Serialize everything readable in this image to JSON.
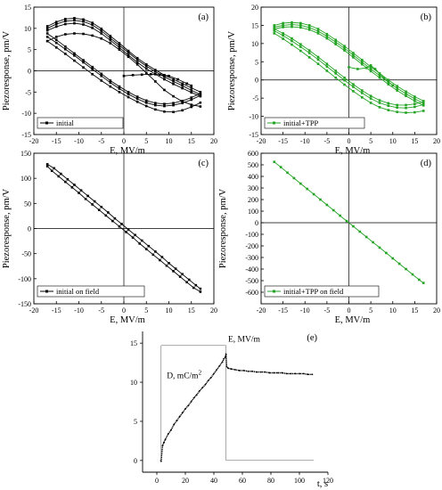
{
  "chart_data": [
    {
      "id": "a",
      "type": "line",
      "panel_label": "(a)",
      "xlabel": "E, MV/m",
      "ylabel": "Piezoresponse, pm/V",
      "xlim": [
        -20,
        20
      ],
      "ylim": [
        -15,
        15
      ],
      "xticks": [
        -20,
        -15,
        -10,
        -5,
        0,
        5,
        10,
        15,
        20
      ],
      "yticks": [
        -15,
        -10,
        -5,
        0,
        5,
        10,
        15
      ],
      "legend": {
        "entries": [
          "initial"
        ],
        "placement": "bottom-left"
      },
      "color": "#000000",
      "series": [
        {
          "x": [
            -17,
            -15,
            -13,
            -11,
            -9,
            -7,
            -5,
            -3,
            -1,
            1,
            3,
            5,
            7,
            9,
            11,
            13,
            15,
            17
          ],
          "y": [
            10.5,
            11.5,
            12.2,
            12.4,
            12.1,
            11.3,
            9.9,
            8.2,
            6.5,
            4.7,
            3.0,
            1.5,
            0.2,
            -1.0,
            -2.0,
            -3.0,
            -4.0,
            -5.0
          ]
        },
        {
          "x": [
            -17,
            -15,
            -13,
            -11,
            -9,
            -7,
            -5,
            -3,
            -1,
            1,
            3,
            5,
            7,
            9,
            11,
            13,
            15,
            17
          ],
          "y": [
            10.0,
            11.0,
            11.7,
            11.9,
            11.6,
            10.8,
            9.4,
            7.7,
            6.0,
            4.3,
            2.6,
            1.1,
            -0.2,
            -1.4,
            -2.5,
            -3.5,
            -4.6,
            -5.6
          ]
        },
        {
          "x": [
            -17,
            -15,
            -13,
            -11,
            -9,
            -7,
            -5,
            -3,
            -1,
            1,
            3,
            5,
            7,
            9,
            11,
            13,
            15,
            17
          ],
          "y": [
            9.5,
            10.4,
            11.0,
            11.2,
            10.9,
            10.1,
            8.8,
            7.2,
            5.5,
            3.7,
            2.0,
            0.5,
            -0.8,
            -2.0,
            -3.1,
            -4.1,
            -5.1,
            -6.0
          ]
        },
        {
          "x": [
            17,
            15,
            13,
            11,
            9,
            7,
            5,
            3,
            1,
            -1,
            -3,
            -5,
            -7,
            -9,
            -11,
            -13,
            -15,
            -17
          ],
          "y": [
            -5.3,
            -6.3,
            -7.1,
            -7.6,
            -7.8,
            -7.6,
            -7.0,
            -6.1,
            -5.0,
            -3.7,
            -2.3,
            -0.7,
            0.9,
            2.5,
            4.1,
            5.7,
            7.3,
            8.8
          ]
        },
        {
          "x": [
            17,
            15,
            13,
            11,
            9,
            7,
            5,
            3,
            1,
            -1,
            -3,
            -5,
            -7,
            -9,
            -11,
            -13,
            -15,
            -17
          ],
          "y": [
            -5.8,
            -6.8,
            -7.6,
            -8.1,
            -8.3,
            -8.1,
            -7.5,
            -6.6,
            -5.5,
            -4.2,
            -2.8,
            -1.2,
            0.4,
            2.0,
            3.6,
            5.1,
            6.6,
            8.0
          ]
        },
        {
          "x": [
            17,
            15,
            13,
            11,
            9,
            7,
            5,
            3,
            1,
            -1,
            -3,
            -5,
            -7,
            -9,
            -11,
            -13,
            -15,
            -17
          ],
          "y": [
            -7.5,
            -8.5,
            -9.3,
            -9.7,
            -9.6,
            -9.1,
            -8.3,
            -7.3,
            -6.2,
            -5.0,
            -3.7,
            -2.3,
            -0.8,
            0.8,
            2.4,
            4.0,
            5.5,
            7.0
          ]
        },
        {
          "x": [
            -17,
            -15,
            -13,
            -11,
            -9,
            -7,
            -5,
            -3,
            -1,
            1,
            3,
            5,
            7,
            9,
            11,
            13,
            15,
            17
          ],
          "y": [
            7.0,
            8.0,
            8.6,
            8.8,
            8.7,
            8.3,
            7.6,
            6.5,
            5.0,
            3.3,
            1.5,
            -0.5,
            -2.5,
            -4.5,
            -6.0,
            -7.2,
            -8.0,
            -8.4
          ]
        },
        {
          "x": [
            0,
            2,
            4,
            6,
            8,
            10,
            12,
            14,
            15
          ],
          "y": [
            -1.2,
            -1.0,
            -0.9,
            -0.8,
            -0.9,
            -1.2,
            -2.0,
            -3.0,
            -3.5
          ]
        }
      ]
    },
    {
      "id": "b",
      "type": "line",
      "panel_label": "(b)",
      "xlabel": "E, MV/m",
      "ylabel": "Piezoresponse, pm/V",
      "xlim": [
        -20,
        20
      ],
      "ylim": [
        -15,
        20
      ],
      "xticks": [
        -20,
        -15,
        -10,
        -5,
        0,
        5,
        10,
        15,
        20
      ],
      "yticks": [
        -15,
        -10,
        -5,
        0,
        5,
        10,
        15,
        20
      ],
      "legend": {
        "entries": [
          "initial+TPP"
        ],
        "placement": "bottom-left"
      },
      "color": "#23a323",
      "series": [
        {
          "x": [
            -17,
            -15,
            -13,
            -11,
            -9,
            -7,
            -5,
            -3,
            -1,
            1,
            3,
            5,
            7,
            9,
            11,
            13,
            15,
            17
          ],
          "y": [
            15.0,
            15.6,
            15.8,
            15.6,
            15.0,
            14.0,
            12.6,
            11.0,
            9.3,
            7.4,
            5.5,
            3.6,
            1.8,
            0.0,
            -1.7,
            -3.2,
            -4.6,
            -5.8
          ]
        },
        {
          "x": [
            -17,
            -15,
            -13,
            -11,
            -9,
            -7,
            -5,
            -3,
            -1,
            1,
            3,
            5,
            7,
            9,
            11,
            13,
            15,
            17
          ],
          "y": [
            14.5,
            15.0,
            15.2,
            15.0,
            14.4,
            13.4,
            12.0,
            10.4,
            8.7,
            6.8,
            4.9,
            3.0,
            1.2,
            -0.6,
            -2.3,
            -3.8,
            -5.2,
            -6.4
          ]
        },
        {
          "x": [
            -17,
            -15,
            -13,
            -11,
            -9,
            -7,
            -5,
            -3,
            -1,
            1,
            3,
            5,
            7,
            9,
            11,
            13,
            15,
            17
          ],
          "y": [
            14.0,
            14.5,
            14.6,
            14.4,
            13.8,
            12.8,
            11.4,
            9.8,
            8.1,
            6.2,
            4.3,
            2.4,
            0.6,
            -1.2,
            -2.9,
            -4.4,
            -5.8,
            -7.0
          ]
        },
        {
          "x": [
            17,
            15,
            13,
            11,
            9,
            7,
            5,
            3,
            1,
            -1,
            -3,
            -5,
            -7,
            -9,
            -11,
            -13,
            -15,
            -17
          ],
          "y": [
            -6.0,
            -6.6,
            -6.9,
            -6.9,
            -6.4,
            -5.6,
            -4.4,
            -2.9,
            -1.2,
            0.6,
            2.5,
            4.4,
            6.3,
            8.1,
            9.8,
            11.4,
            12.8,
            14.0
          ]
        },
        {
          "x": [
            17,
            15,
            13,
            11,
            9,
            7,
            5,
            3,
            1,
            -1,
            -3,
            -5,
            -7,
            -9,
            -11,
            -13,
            -15,
            -17
          ],
          "y": [
            -6.8,
            -7.4,
            -7.7,
            -7.6,
            -7.1,
            -6.3,
            -5.1,
            -3.6,
            -1.9,
            -0.1,
            1.8,
            3.7,
            5.6,
            7.4,
            9.1,
            10.7,
            12.2,
            13.5
          ]
        },
        {
          "x": [
            17,
            15,
            13,
            11,
            9,
            7,
            5,
            3,
            1,
            -1,
            -3,
            -5,
            -7,
            -9,
            -11,
            -13,
            -15,
            -17
          ],
          "y": [
            -8.5,
            -8.9,
            -9.0,
            -8.8,
            -8.3,
            -7.5,
            -6.3,
            -4.8,
            -3.1,
            -1.3,
            0.6,
            2.5,
            4.4,
            6.2,
            8.0,
            9.7,
            11.3,
            12.8
          ]
        },
        {
          "x": [
            0,
            2,
            4,
            5,
            6,
            8,
            10
          ],
          "y": [
            3.5,
            3.0,
            3.3,
            4.0,
            3.0,
            0.5,
            -1.5
          ]
        }
      ]
    },
    {
      "id": "c",
      "type": "line",
      "panel_label": "(c)",
      "xlabel": "E, MV/m",
      "ylabel": "Piezoresponse, pm/V",
      "xlim": [
        -20,
        20
      ],
      "ylim": [
        -150,
        150
      ],
      "xticks": [
        -20,
        -15,
        -10,
        -5,
        0,
        5,
        10,
        15,
        20
      ],
      "yticks": [
        -150,
        -100,
        -50,
        0,
        50,
        100,
        150
      ],
      "legend": {
        "entries": [
          "initial on field"
        ],
        "placement": "bottom-left"
      },
      "color": "#000000",
      "series": [
        {
          "x": [
            -17,
            -15.5,
            -14,
            -12.5,
            -11,
            -9.5,
            -8,
            -6.5,
            -5,
            -3.5,
            -2,
            -0.5,
            1,
            2.5,
            4,
            5.5,
            7,
            8.5,
            10,
            11.5,
            13,
            14.5,
            16,
            17
          ],
          "y": [
            128,
            120,
            109,
            98,
            87,
            76,
            65,
            54,
            43,
            32,
            20,
            9,
            -2,
            -13,
            -24,
            -35,
            -46,
            -57,
            -69,
            -80,
            -91,
            -102,
            -113,
            -120
          ]
        },
        {
          "x": [
            17,
            15.5,
            14,
            12.5,
            11,
            9.5,
            8,
            6.5,
            5,
            3.5,
            2,
            0.5,
            -1,
            -2.5,
            -4,
            -5.5,
            -7,
            -8.5,
            -10,
            -11.5,
            -13,
            -14.5,
            -16,
            -17
          ],
          "y": [
            -126,
            -118,
            -107,
            -96,
            -85,
            -74,
            -63,
            -52,
            -41,
            -30,
            -18,
            -7,
            4,
            15,
            26,
            37,
            48,
            59,
            71,
            82,
            93,
            104,
            115,
            124
          ]
        }
      ]
    },
    {
      "id": "d",
      "type": "line",
      "panel_label": "(d)",
      "xlabel": "E, MV/m",
      "ylabel": "Piezoresponse, pm/V",
      "xlim": [
        -20,
        20
      ],
      "ylim": [
        -700,
        600
      ],
      "xticks": [
        -20,
        -15,
        -10,
        -5,
        0,
        5,
        10,
        15,
        20
      ],
      "yticks": [
        -600,
        -500,
        -400,
        -300,
        -200,
        -100,
        0,
        100,
        200,
        300,
        400,
        500,
        600
      ],
      "legend": {
        "entries": [
          "initial+TPP on field"
        ],
        "placement": "bottom-left"
      },
      "color": "#23a323",
      "series": [
        {
          "x": [
            -17,
            -15.5,
            -14,
            -12.5,
            -11,
            -9.5,
            -8,
            -6.5,
            -5,
            -3.5,
            -2,
            -0.5,
            1,
            2.5,
            4,
            5.5,
            7,
            8.5,
            10,
            11.5,
            13,
            14.5,
            16,
            17
          ],
          "y": [
            525,
            480,
            432,
            385,
            338,
            292,
            246,
            200,
            154,
            108,
            61,
            15,
            -31,
            -77,
            -123,
            -169,
            -215,
            -261,
            -308,
            -354,
            -400,
            -446,
            -492,
            -520
          ]
        }
      ]
    },
    {
      "id": "e",
      "type": "line",
      "panel_label": "(e)",
      "xlabel": "t, s",
      "ylabel": "",
      "xlim": [
        -10,
        120
      ],
      "ylim": [
        -1.5,
        16.5
      ],
      "xticks": [
        0,
        20,
        40,
        60,
        80,
        100,
        120
      ],
      "yticks": [
        0,
        5,
        10,
        15
      ],
      "color": "#000000",
      "annotations": [
        {
          "text": "E, MV/m",
          "at": [
            50,
            15.2
          ]
        },
        {
          "text": "D, mC/m",
          "superscript": "2",
          "at": [
            7,
            10.5
          ]
        }
      ],
      "series": [
        {
          "name": "E, MV/m",
          "style": "thin",
          "x": [
            2,
            3,
            3,
            48,
            48.5,
            48.5,
            110
          ],
          "y": [
            0,
            0,
            14.7,
            14.7,
            14.7,
            0,
            0
          ]
        },
        {
          "name": "D, mC/m2",
          "style": "dots",
          "x": [
            3,
            4,
            5,
            6,
            8,
            10,
            12,
            14,
            16,
            18,
            20,
            22,
            24,
            26,
            28,
            30,
            32,
            34,
            36,
            38,
            40,
            42,
            44,
            46,
            47,
            48,
            48.5,
            49,
            50,
            52,
            55,
            58,
            61,
            64,
            67,
            70,
            73,
            76,
            79,
            82,
            85,
            88,
            91,
            94,
            97,
            100,
            103,
            106,
            109
          ],
          "y": [
            -0.1,
            1.9,
            2.3,
            2.7,
            3.4,
            3.9,
            4.6,
            5.1,
            5.6,
            6.1,
            6.6,
            7.0,
            7.5,
            8.0,
            8.4,
            8.9,
            9.3,
            9.7,
            10.2,
            10.6,
            11.1,
            11.6,
            12.1,
            12.6,
            13.0,
            13.2,
            13.6,
            12.0,
            11.8,
            11.7,
            11.6,
            11.5,
            11.5,
            11.4,
            11.4,
            11.3,
            11.3,
            11.3,
            11.2,
            11.2,
            11.2,
            11.2,
            11.1,
            11.1,
            11.1,
            11.1,
            11.1,
            11.0,
            11.0
          ]
        }
      ]
    }
  ]
}
